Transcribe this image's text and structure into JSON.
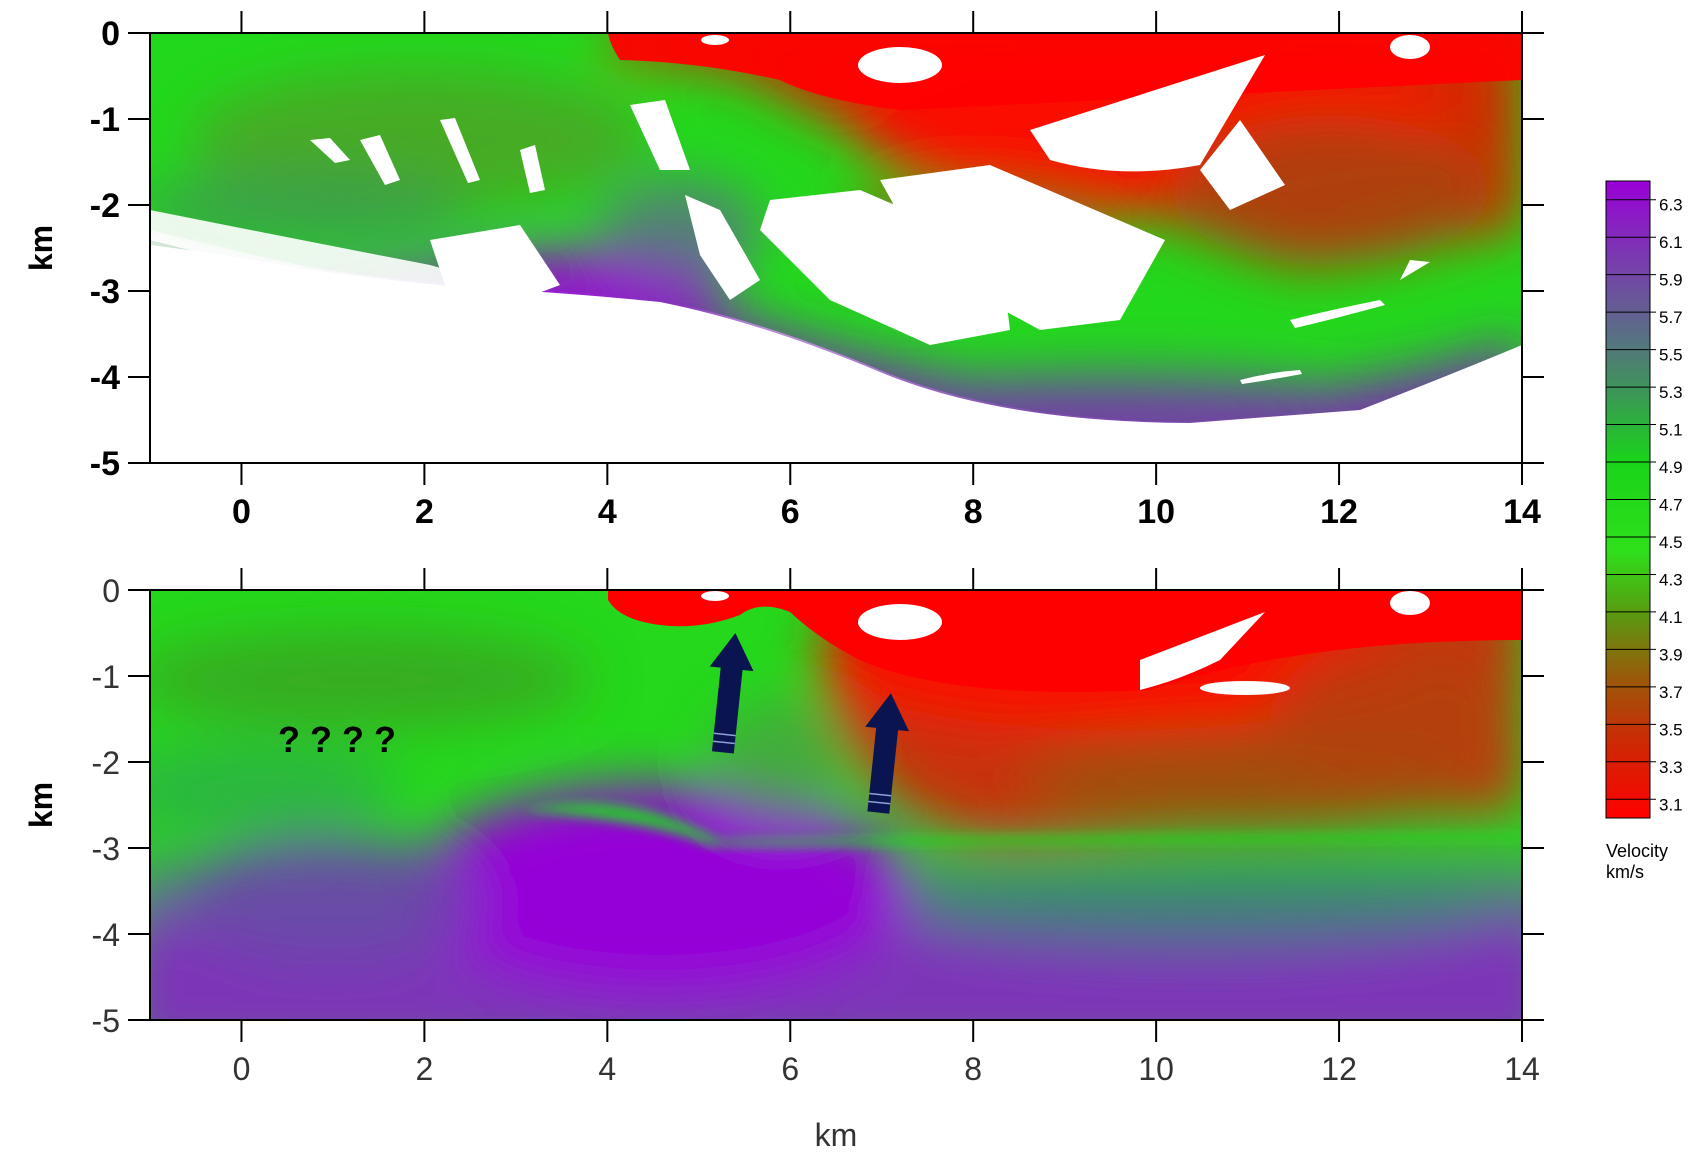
{
  "chart_data": [
    {
      "type": "heatmap",
      "panel": "top",
      "xlabel": "",
      "ylabel": "km",
      "xlim": [
        -1,
        14
      ],
      "ylim": [
        -5,
        0
      ],
      "x_ticks": [
        "0",
        "2",
        "4",
        "6",
        "8",
        "10",
        "12",
        "14"
      ],
      "y_ticks": [
        "0",
        "-1",
        "-2",
        "-3",
        "-4",
        "-5"
      ],
      "note_unresolved": "white regions are unresolved / blanked cells"
    },
    {
      "type": "heatmap",
      "panel": "bottom",
      "xlabel": "km",
      "ylabel": "km",
      "xlim": [
        -1,
        14
      ],
      "ylim": [
        -5,
        0
      ],
      "x_ticks": [
        "0",
        "2",
        "4",
        "6",
        "8",
        "10",
        "12",
        "14"
      ],
      "y_ticks": [
        "0",
        "-1",
        "-2",
        "-3",
        "-4",
        "-5"
      ],
      "annotations": {
        "question_text": "? ? ? ?",
        "arrows": [
          {
            "tip_x_km": 5.4,
            "tip_depth_km": -0.5
          },
          {
            "tip_x_km": 7.1,
            "tip_depth_km": -1.2
          }
        ]
      }
    }
  ],
  "colorbar": {
    "title_line1": "Velocity",
    "title_line2": "km/s",
    "min": 3.0,
    "max": 6.4,
    "tick_labels": [
      "6.3",
      "6.1",
      "5.9",
      "5.7",
      "5.5",
      "5.3",
      "5.1",
      "4.9",
      "4.7",
      "4.5",
      "4.3",
      "4.1",
      "3.9",
      "3.7",
      "3.5",
      "3.3",
      "3.1"
    ]
  },
  "colors": {
    "slow": "#ff0000",
    "mid_brown": "#9a5a0a",
    "mid": "#00ee00",
    "mid_slate": "#5a6e86",
    "fast": "#9400d3",
    "arrow_fill": "#0a1450"
  }
}
